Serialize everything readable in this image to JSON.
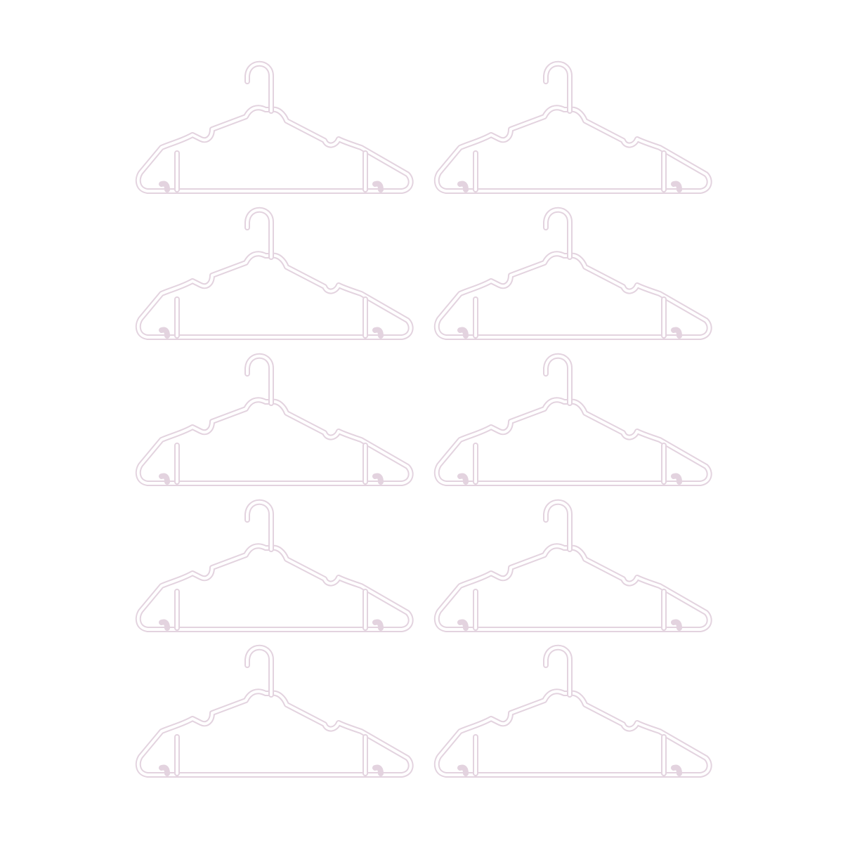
{
  "scene": {
    "background_color": "#ffffff",
    "hanger_color": "#e3d3df",
    "hanger_inner_color": "#ffffff"
  },
  "hangers": [
    {
      "name": "hanger-1"
    },
    {
      "name": "hanger-2"
    },
    {
      "name": "hanger-3"
    },
    {
      "name": "hanger-4"
    },
    {
      "name": "hanger-5"
    },
    {
      "name": "hanger-6"
    },
    {
      "name": "hanger-7"
    },
    {
      "name": "hanger-8"
    },
    {
      "name": "hanger-9"
    },
    {
      "name": "hanger-10"
    }
  ]
}
